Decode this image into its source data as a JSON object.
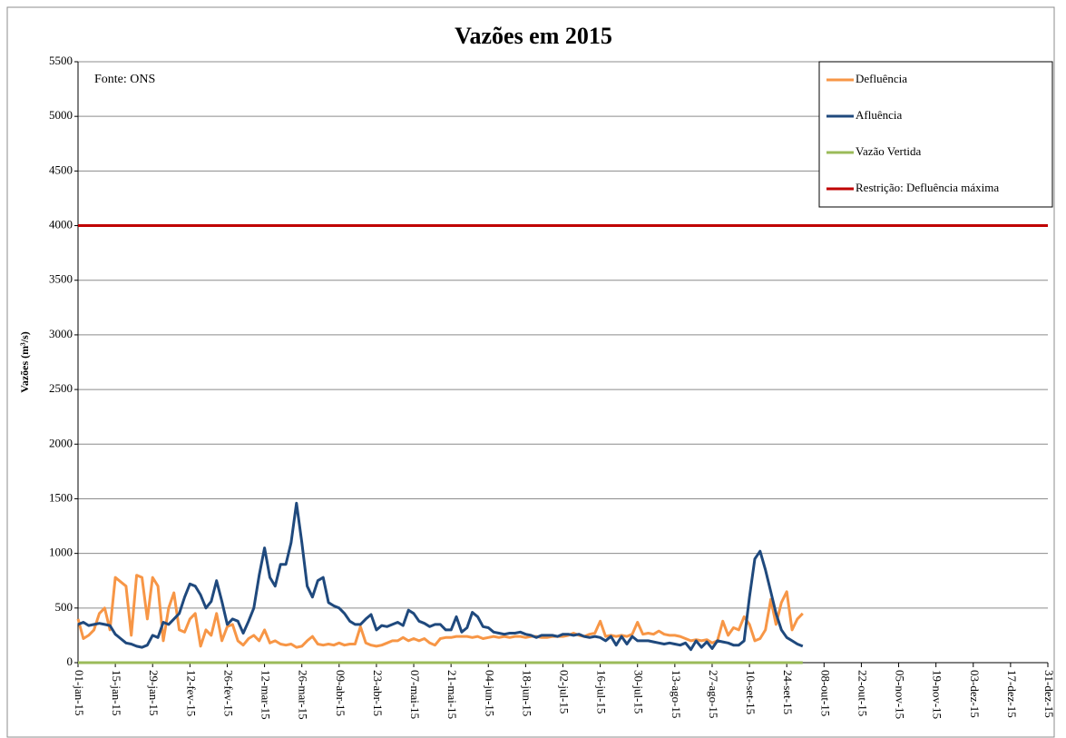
{
  "chart_data": {
    "type": "line",
    "title": "Vazões em 2015",
    "y_label": "Vazões (m³/s)",
    "annotation": "Fonte: ONS",
    "x": [
      0,
      2,
      4,
      6,
      8,
      10,
      12,
      14,
      16,
      18,
      20,
      22,
      24,
      26,
      28,
      30,
      32,
      34,
      36,
      38,
      40,
      42,
      44,
      46,
      48,
      50,
      52,
      54,
      56,
      58,
      60,
      62,
      64,
      66,
      68,
      70,
      72,
      74,
      76,
      78,
      80,
      82,
      84,
      86,
      88,
      90,
      92,
      94,
      96,
      98,
      100,
      102,
      104,
      106,
      108,
      110,
      112,
      114,
      116,
      118,
      120,
      122,
      124,
      126,
      128,
      130,
      132,
      134,
      136,
      138,
      140,
      142,
      144,
      146,
      148,
      150,
      152,
      154,
      156,
      158,
      160,
      162,
      164,
      166,
      168,
      170,
      172,
      174,
      176,
      178,
      180,
      182,
      184,
      186,
      188,
      190,
      192,
      194,
      196,
      198,
      200,
      202,
      204,
      206,
      208,
      210,
      212,
      214,
      216,
      218,
      220,
      222,
      224,
      226,
      228,
      230,
      232,
      234,
      236,
      238,
      240,
      242,
      244,
      246,
      248,
      250,
      252,
      254,
      256,
      258,
      260,
      262,
      264,
      266,
      268,
      270,
      272
    ],
    "xlim": [
      0,
      364
    ],
    "xticks": [
      {
        "value": 0,
        "label": "01-jan-15"
      },
      {
        "value": 14,
        "label": "15-jan-15"
      },
      {
        "value": 28,
        "label": "29-jan-15"
      },
      {
        "value": 42,
        "label": "12-fev-15"
      },
      {
        "value": 56,
        "label": "26-fev-15"
      },
      {
        "value": 70,
        "label": "12-mar-15"
      },
      {
        "value": 84,
        "label": "26-mar-15"
      },
      {
        "value": 98,
        "label": "09-abr-15"
      },
      {
        "value": 112,
        "label": "23-abr-15"
      },
      {
        "value": 126,
        "label": "07-mai-15"
      },
      {
        "value": 140,
        "label": "21-mai-15"
      },
      {
        "value": 154,
        "label": "04-jun-15"
      },
      {
        "value": 168,
        "label": "18-jun-15"
      },
      {
        "value": 182,
        "label": "02-jul-15"
      },
      {
        "value": 196,
        "label": "16-jul-15"
      },
      {
        "value": 210,
        "label": "30-jul-15"
      },
      {
        "value": 224,
        "label": "13-ago-15"
      },
      {
        "value": 238,
        "label": "27-ago-15"
      },
      {
        "value": 252,
        "label": "10-set-15"
      },
      {
        "value": 266,
        "label": "24-set-15"
      },
      {
        "value": 280,
        "label": "08-out-15"
      },
      {
        "value": 294,
        "label": "22-out-15"
      },
      {
        "value": 308,
        "label": "05-nov-15"
      },
      {
        "value": 322,
        "label": "19-nov-15"
      },
      {
        "value": 336,
        "label": "03-dez-15"
      },
      {
        "value": 350,
        "label": "17-dez-15"
      },
      {
        "value": 364,
        "label": "31-dez-15"
      }
    ],
    "ylim": [
      0,
      5500
    ],
    "yticks": [
      0,
      500,
      1000,
      1500,
      2000,
      2500,
      3000,
      3500,
      4000,
      4500,
      5000,
      5500
    ],
    "grid": true,
    "legend": "upper right",
    "series": [
      {
        "name": "Defluência",
        "color": "#f79646",
        "values": [
          400,
          220,
          250,
          300,
          450,
          500,
          300,
          780,
          740,
          700,
          250,
          800,
          780,
          400,
          780,
          700,
          200,
          500,
          640,
          300,
          280,
          400,
          450,
          150,
          300,
          250,
          450,
          200,
          330,
          350,
          200,
          160,
          220,
          250,
          200,
          300,
          180,
          200,
          170,
          160,
          170,
          140,
          150,
          200,
          240,
          170,
          160,
          170,
          160,
          180,
          160,
          170,
          170,
          330,
          180,
          160,
          150,
          160,
          180,
          200,
          200,
          230,
          200,
          220,
          200,
          220,
          180,
          160,
          220,
          230,
          230,
          240,
          240,
          240,
          230,
          240,
          220,
          230,
          240,
          230,
          240,
          230,
          240,
          240,
          230,
          240,
          240,
          230,
          230,
          240,
          240,
          240,
          250,
          270,
          250,
          240,
          260,
          270,
          380,
          240,
          250,
          240,
          250,
          240,
          260,
          370,
          260,
          270,
          260,
          290,
          260,
          250,
          250,
          240,
          220,
          200,
          210,
          200,
          210,
          180,
          200,
          380,
          250,
          320,
          300,
          420,
          350,
          200,
          220,
          300,
          580,
          350,
          550,
          650,
          300,
          400,
          450
        ]
      },
      {
        "name": "Afluência",
        "color": "#1f497d",
        "values": [
          350,
          370,
          340,
          350,
          360,
          350,
          340,
          260,
          220,
          180,
          170,
          150,
          140,
          160,
          250,
          230,
          370,
          350,
          400,
          450,
          600,
          720,
          700,
          620,
          500,
          560,
          750,
          560,
          350,
          400,
          380,
          270,
          380,
          500,
          800,
          1050,
          780,
          700,
          900,
          900,
          1100,
          1460,
          1100,
          700,
          600,
          750,
          780,
          550,
          520,
          500,
          450,
          380,
          350,
          350,
          400,
          440,
          300,
          340,
          330,
          350,
          370,
          340,
          480,
          450,
          380,
          360,
          330,
          350,
          350,
          300,
          300,
          420,
          280,
          320,
          460,
          420,
          330,
          320,
          280,
          270,
          260,
          270,
          270,
          280,
          260,
          250,
          230,
          250,
          250,
          250,
          240,
          260,
          260,
          250,
          260,
          240,
          230,
          240,
          230,
          200,
          240,
          160,
          240,
          170,
          240,
          200,
          200,
          200,
          190,
          180,
          170,
          180,
          170,
          160,
          180,
          120,
          200,
          140,
          190,
          130,
          200,
          190,
          180,
          160,
          160,
          200,
          600,
          950,
          1020,
          850,
          650,
          450,
          300,
          230,
          200,
          170,
          150
        ]
      },
      {
        "name": "Vazão Vertida",
        "color": "#9bbb59",
        "values": [
          0,
          0,
          0,
          0,
          0,
          0,
          0,
          0,
          0,
          0,
          0,
          0,
          0,
          0,
          0,
          0,
          0,
          0,
          0,
          0,
          0,
          0,
          0,
          0,
          0,
          0,
          0,
          0,
          0,
          0,
          0,
          0,
          0,
          0,
          0,
          0,
          0,
          0,
          0,
          0,
          0,
          0,
          0,
          0,
          0,
          0,
          0,
          0,
          0,
          0,
          0,
          0,
          0,
          0,
          0,
          0,
          0,
          0,
          0,
          0,
          0,
          0,
          0,
          0,
          0,
          0,
          0,
          0,
          0,
          0,
          0,
          0,
          0,
          0,
          0,
          0,
          0,
          0,
          0,
          0,
          0,
          0,
          0,
          0,
          0,
          0,
          0,
          0,
          0,
          0,
          0,
          0,
          0,
          0,
          0,
          0,
          0,
          0,
          0,
          0,
          0,
          0,
          0,
          0,
          0,
          0,
          0,
          0,
          0,
          0,
          0,
          0,
          0,
          0,
          0,
          0,
          0,
          0,
          0,
          0,
          0,
          0,
          0,
          0,
          0,
          0,
          0,
          0,
          0,
          0,
          0,
          0,
          0,
          0,
          0,
          0,
          0
        ]
      },
      {
        "name": "Restrição: Defluência máxima",
        "color": "#c00000",
        "x": [
          0,
          364
        ],
        "values": [
          4000,
          4000
        ]
      }
    ]
  }
}
